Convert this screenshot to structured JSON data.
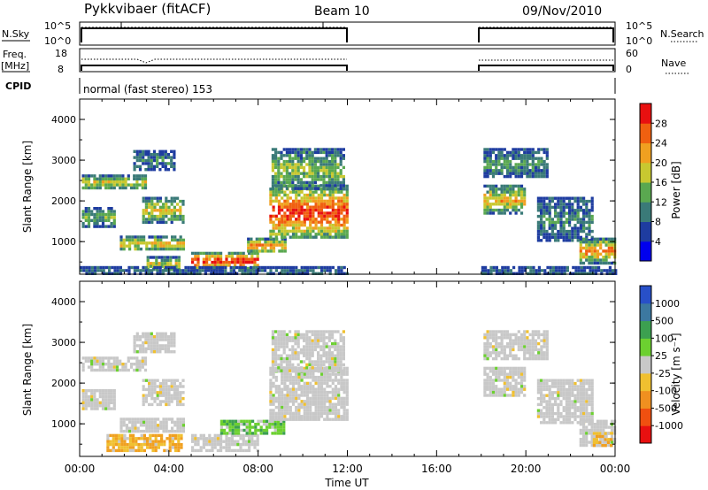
{
  "header": {
    "radar": "Pykkvibaer (fitACF)",
    "beam": "Beam 10",
    "date": "09/Nov/2010"
  },
  "nsky_panel": {
    "left_label": "N.Sky",
    "left_ticks": [
      "10^5",
      "10^0"
    ],
    "right_label": "N.Search",
    "right_ticks": [
      "10^5",
      "10^0"
    ]
  },
  "freq_panel": {
    "label_1": "Freq.",
    "label_2": "[MHz]",
    "left_ticks": [
      "18",
      "8"
    ],
    "right_label": "Nave",
    "right_ticks": [
      "60",
      "0"
    ]
  },
  "cpid": {
    "label": "CPID",
    "text": "normal (fast stereo) 153"
  },
  "x_axis": {
    "label": "Time UT",
    "ticks": [
      "00:00",
      "04:00",
      "08:00",
      "12:00",
      "16:00",
      "20:00",
      "00:00"
    ]
  },
  "chart_data": [
    {
      "type": "heatmap",
      "name": "power",
      "ylabel": "Slant Range [km]",
      "yticks": [
        "1000",
        "2000",
        "3000",
        "4000"
      ],
      "ylim": [
        200,
        4500
      ],
      "xlim_hours": [
        0,
        24
      ],
      "data_gap_hours": [
        12,
        18
      ],
      "colorbar": {
        "label": "Power [dB]",
        "ticks": [
          "4",
          "8",
          "12",
          "16",
          "20",
          "24",
          "28"
        ],
        "range": [
          0,
          32
        ],
        "colors": [
          "#0000ee",
          "#1e3ca0",
          "#3a7a78",
          "#5aa850",
          "#c8c830",
          "#f0a020",
          "#f06010",
          "#e81010"
        ]
      },
      "echo_regions": [
        {
          "t0": 0.1,
          "t1": 2.9,
          "r0": 2300,
          "r1": 2650,
          "level": 0.45
        },
        {
          "t0": 2.4,
          "t1": 4.2,
          "r0": 2800,
          "r1": 3250,
          "level": 0.2
        },
        {
          "t0": 0.1,
          "t1": 1.5,
          "r0": 1350,
          "r1": 1850,
          "level": 0.3
        },
        {
          "t0": 2.8,
          "t1": 4.6,
          "r0": 1500,
          "r1": 2100,
          "level": 0.45
        },
        {
          "t0": 1.8,
          "t1": 4.6,
          "r0": 800,
          "r1": 1150,
          "level": 0.5
        },
        {
          "t0": 3.0,
          "t1": 4.5,
          "r0": 300,
          "r1": 650,
          "level": 0.45
        },
        {
          "t0": 5.0,
          "t1": 8.0,
          "r0": 350,
          "r1": 750,
          "level": 0.8
        },
        {
          "t0": 7.5,
          "t1": 9.2,
          "r0": 750,
          "r1": 1100,
          "level": 0.6
        },
        {
          "t0": 8.5,
          "t1": 12.0,
          "r0": 1100,
          "r1": 2400,
          "level": 0.75
        },
        {
          "t0": 8.6,
          "t1": 11.8,
          "r0": 2300,
          "r1": 3300,
          "level": 0.35
        },
        {
          "t0": 18.1,
          "t1": 20.0,
          "r0": 1700,
          "r1": 2400,
          "level": 0.5
        },
        {
          "t0": 18.1,
          "t1": 21.0,
          "r0": 2600,
          "r1": 3300,
          "level": 0.25
        },
        {
          "t0": 20.5,
          "t1": 23.0,
          "r0": 1000,
          "r1": 2100,
          "level": 0.2
        },
        {
          "t0": 22.4,
          "t1": 24.0,
          "r0": 500,
          "r1": 1100,
          "level": 0.6
        },
        {
          "t0": 0.0,
          "t1": 12.0,
          "r0": 200,
          "r1": 400,
          "level": 0.15
        },
        {
          "t0": 18.0,
          "t1": 24.0,
          "r0": 200,
          "r1": 400,
          "level": 0.15
        }
      ]
    },
    {
      "type": "heatmap",
      "name": "velocity",
      "ylabel": "Slant Range [km]",
      "yticks": [
        "1000",
        "2000",
        "3000",
        "4000"
      ],
      "ylim": [
        200,
        4500
      ],
      "xlim_hours": [
        0,
        24
      ],
      "data_gap_hours": [
        12,
        18
      ],
      "colorbar": {
        "label": "Velocity [m s⁻¹]",
        "ticks": [
          "1000",
          "500",
          "100",
          "25",
          "-25",
          "-100",
          "-500",
          "-1000"
        ],
        "colors": [
          "#2850c8",
          "#3c78a0",
          "#3ca050",
          "#6cd030",
          "#c8c8c8",
          "#f0c030",
          "#f09020",
          "#f05010",
          "#e81010"
        ]
      },
      "echo_regions": [
        {
          "t0": 0.1,
          "t1": 2.9,
          "r0": 2300,
          "r1": 2650,
          "class": "grey"
        },
        {
          "t0": 2.4,
          "t1": 4.2,
          "r0": 2800,
          "r1": 3250,
          "class": "grey"
        },
        {
          "t0": 0.1,
          "t1": 1.5,
          "r0": 1350,
          "r1": 1850,
          "class": "grey"
        },
        {
          "t0": 2.8,
          "t1": 4.6,
          "r0": 1500,
          "r1": 2100,
          "class": "grey"
        },
        {
          "t0": 1.8,
          "t1": 4.6,
          "r0": 800,
          "r1": 1150,
          "class": "grey"
        },
        {
          "t0": 1.2,
          "t1": 4.6,
          "r0": 350,
          "r1": 750,
          "class": "orange"
        },
        {
          "t0": 5.0,
          "t1": 8.0,
          "r0": 350,
          "r1": 750,
          "class": "grey"
        },
        {
          "t0": 6.3,
          "t1": 9.2,
          "r0": 750,
          "r1": 1100,
          "class": "green"
        },
        {
          "t0": 8.5,
          "t1": 12.0,
          "r0": 1100,
          "r1": 2400,
          "class": "grey"
        },
        {
          "t0": 8.6,
          "t1": 11.8,
          "r0": 2300,
          "r1": 3300,
          "class": "grey"
        },
        {
          "t0": 18.1,
          "t1": 20.0,
          "r0": 1700,
          "r1": 2400,
          "class": "grey"
        },
        {
          "t0": 18.1,
          "t1": 21.0,
          "r0": 2600,
          "r1": 3300,
          "class": "grey"
        },
        {
          "t0": 20.5,
          "t1": 23.0,
          "r0": 1000,
          "r1": 2100,
          "class": "grey"
        },
        {
          "t0": 22.4,
          "t1": 24.0,
          "r0": 500,
          "r1": 1100,
          "class": "grey"
        },
        {
          "t0": 23.0,
          "t1": 23.8,
          "r0": 500,
          "r1": 800,
          "class": "orange"
        }
      ]
    }
  ]
}
